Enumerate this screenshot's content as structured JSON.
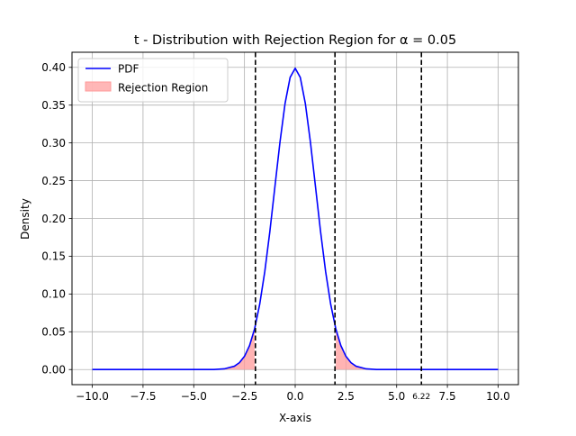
{
  "chart_data": {
    "type": "line",
    "title": "t - Distribution with Rejection Region for α = 0.05",
    "xlabel": "X-axis",
    "ylabel": "Density",
    "xlim": [
      -11.0,
      11.0
    ],
    "ylim": [
      -0.02,
      0.42
    ],
    "grid": true,
    "legend_position": "top-left",
    "x_ticks": [
      -10.0,
      -7.5,
      -5.0,
      -2.5,
      0.0,
      2.5,
      5.0,
      7.5,
      10.0
    ],
    "x_tick_labels": [
      "−10.0",
      "−7.5",
      "−5.0",
      "−2.5",
      "0.0",
      "2.5",
      "5.0",
      "7.5",
      "10.0"
    ],
    "y_ticks": [
      0.0,
      0.05,
      0.1,
      0.15,
      0.2,
      0.25,
      0.3,
      0.35,
      0.4
    ],
    "y_tick_labels": [
      "0.00",
      "0.05",
      "0.10",
      "0.15",
      "0.20",
      "0.25",
      "0.30",
      "0.35",
      "0.40"
    ],
    "series": [
      {
        "name": "PDF",
        "color": "#0000ff",
        "x": [
          -10,
          -9,
          -8,
          -7,
          -6,
          -5,
          -4.5,
          -4,
          -3.5,
          -3,
          -2.75,
          -2.5,
          -2.25,
          -2,
          -1.75,
          -1.5,
          -1.25,
          -1,
          -0.75,
          -0.5,
          -0.25,
          0,
          0.25,
          0.5,
          0.75,
          1,
          1.25,
          1.5,
          1.75,
          2,
          2.25,
          2.5,
          2.75,
          3,
          3.5,
          4,
          4.5,
          5,
          6,
          7,
          8,
          9,
          10
        ],
        "y": [
          0.0,
          0.0,
          0.0,
          0.0,
          0.0,
          0.0,
          0.0,
          0.0001,
          0.0009,
          0.0044,
          0.0091,
          0.0175,
          0.0317,
          0.054,
          0.0863,
          0.1295,
          0.1826,
          0.242,
          0.3011,
          0.3521,
          0.3867,
          0.3989,
          0.3867,
          0.3521,
          0.3011,
          0.242,
          0.1826,
          0.1295,
          0.0863,
          0.054,
          0.0317,
          0.0175,
          0.0091,
          0.0044,
          0.0009,
          0.0001,
          0.0,
          0.0,
          0.0,
          0.0,
          0.0,
          0.0,
          0.0
        ]
      }
    ],
    "rejection_region": {
      "name": "Rejection Region",
      "color": "#ff9999",
      "lower_bound": -1.96,
      "upper_bound": 1.96
    },
    "vertical_lines": [
      {
        "x": -1.96,
        "label": "",
        "color": "#000000"
      },
      {
        "x": 1.96,
        "label": "",
        "color": "#000000"
      },
      {
        "x": 6.22,
        "label": "6.22",
        "color": "#000000"
      }
    ]
  }
}
